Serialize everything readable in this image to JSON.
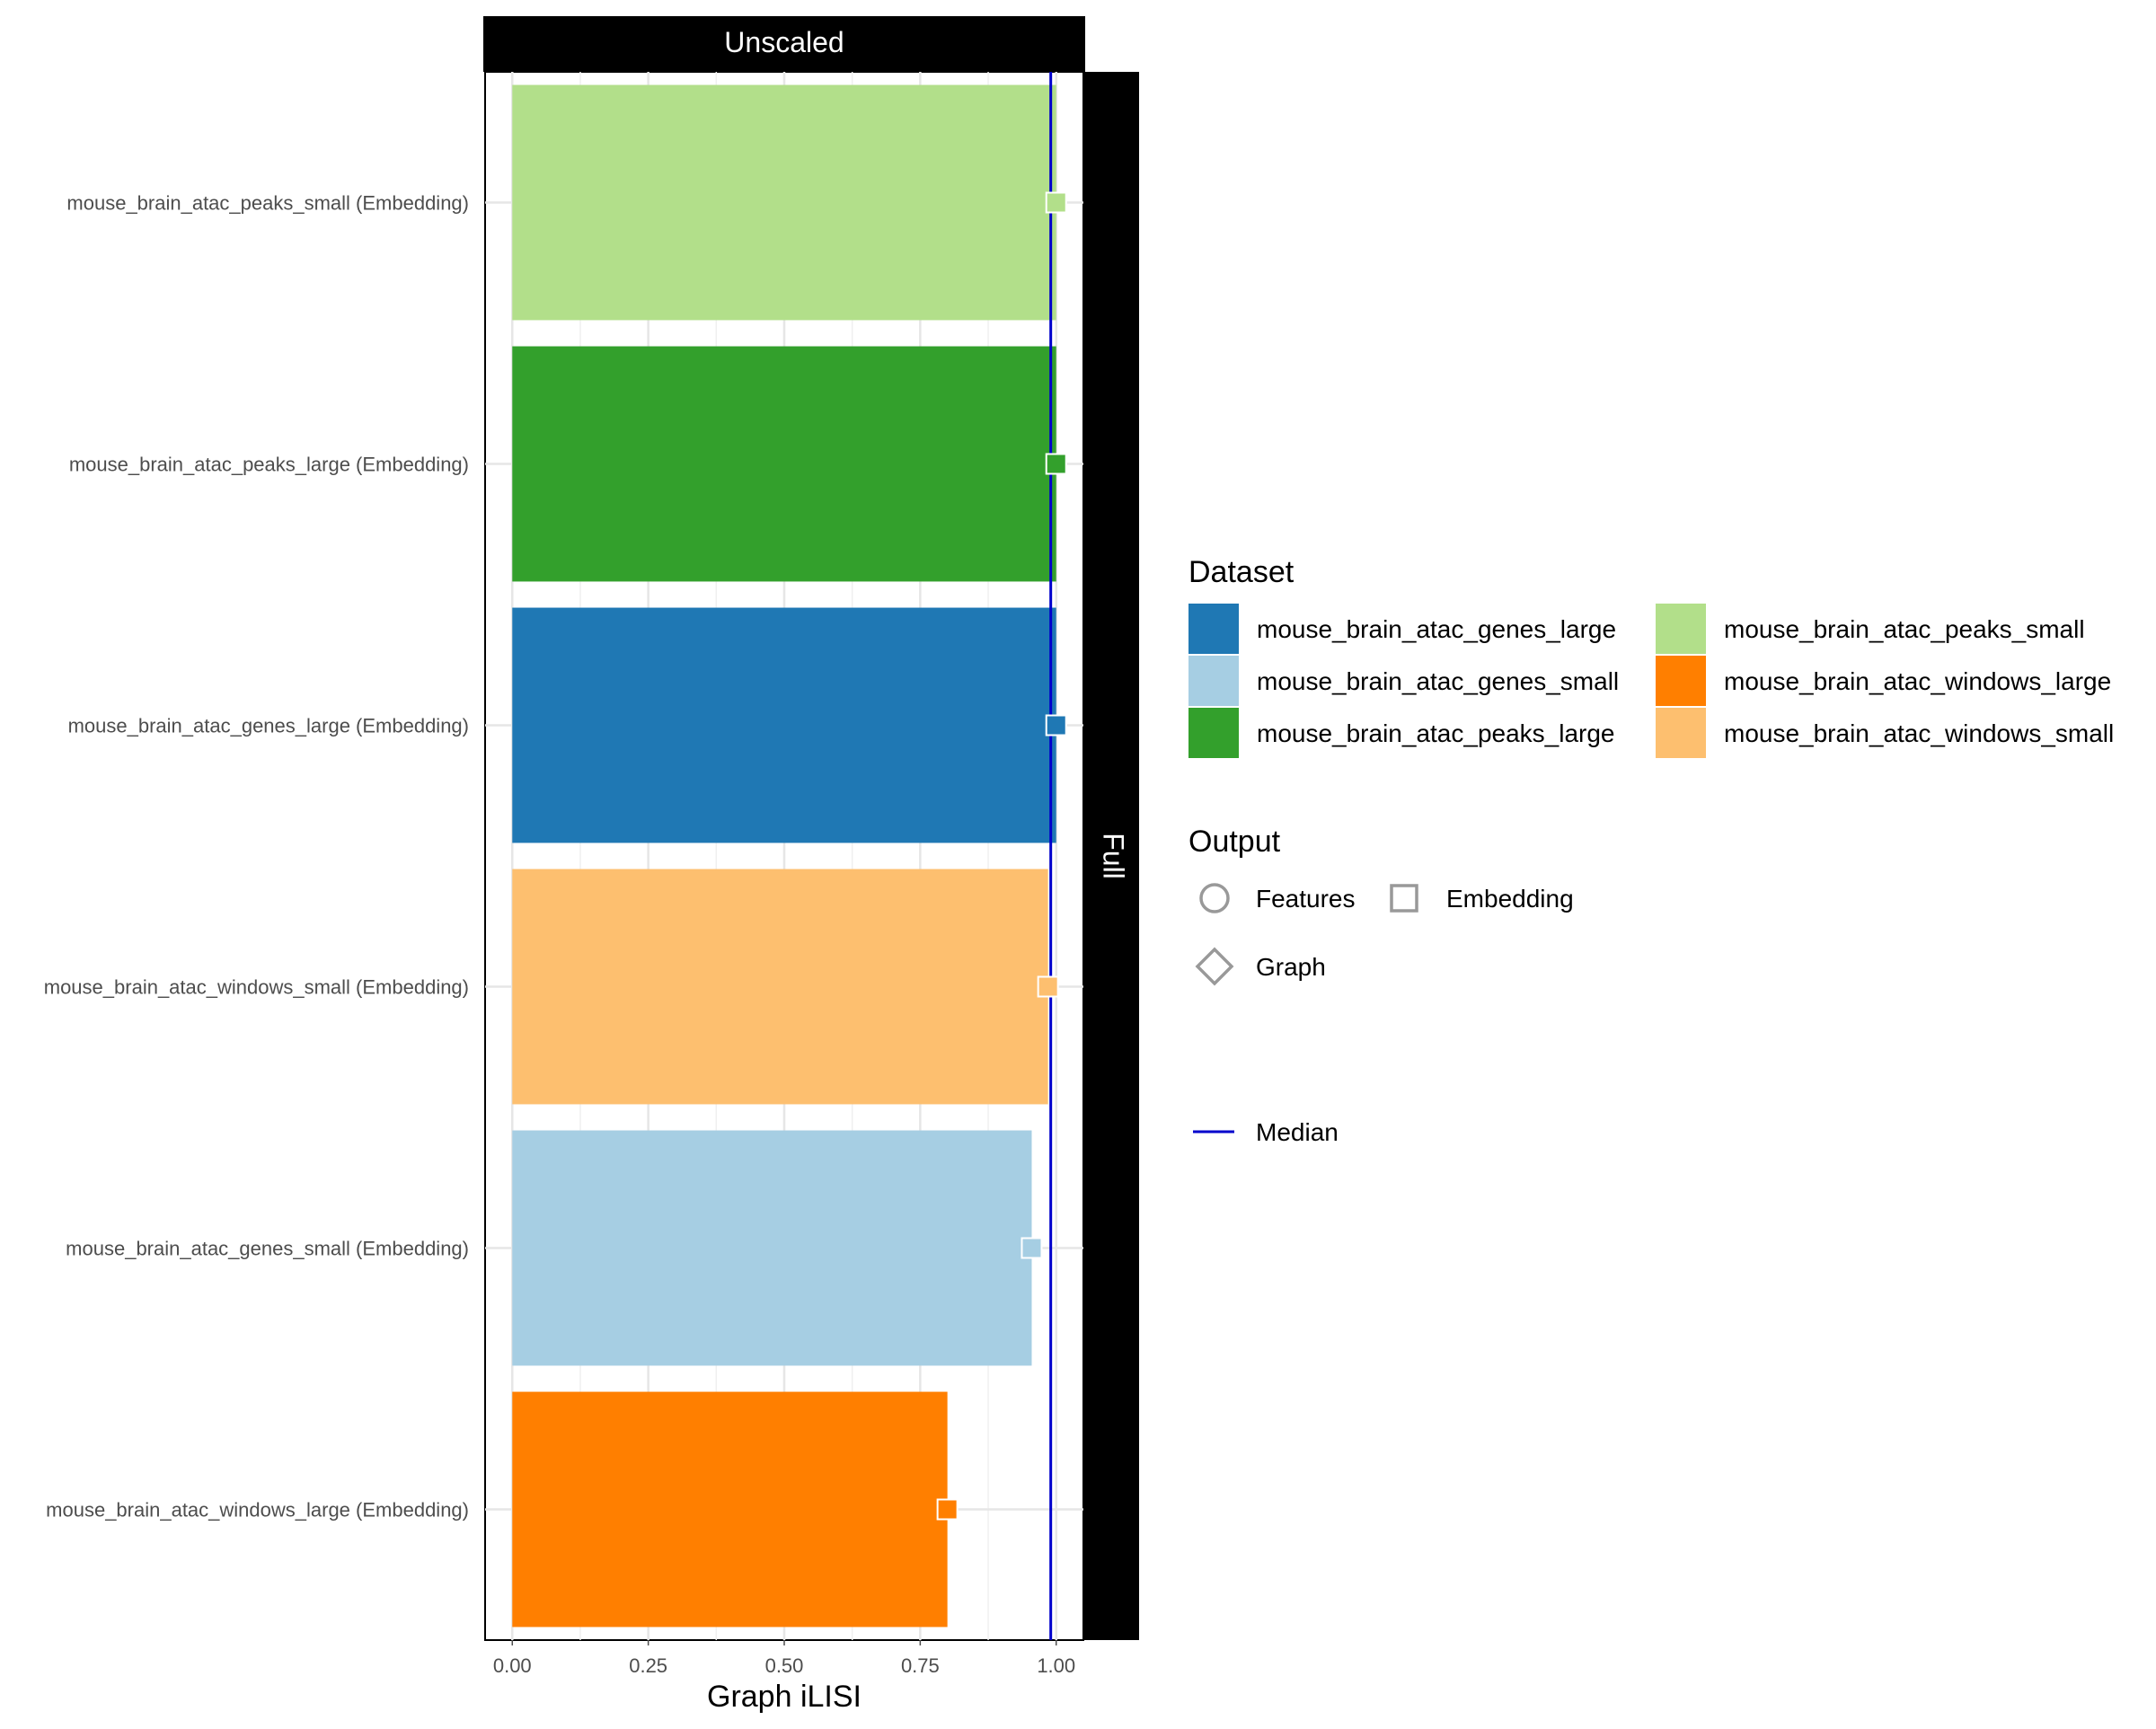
{
  "chart_data": {
    "type": "bar",
    "orientation": "horizontal",
    "facet_column_label": "Unscaled",
    "facet_row_label": "Full",
    "categories": [
      "mouse_brain_atac_peaks_small (Embedding)",
      "mouse_brain_atac_peaks_large (Embedding)",
      "mouse_brain_atac_genes_large (Embedding)",
      "mouse_brain_atac_windows_small (Embedding)",
      "mouse_brain_atac_genes_small (Embedding)",
      "mouse_brain_atac_windows_large (Embedding)"
    ],
    "values": [
      1.0,
      1.0,
      1.0,
      0.985,
      0.955,
      0.8
    ],
    "datasets": [
      "mouse_brain_atac_peaks_small",
      "mouse_brain_atac_peaks_large",
      "mouse_brain_atac_genes_large",
      "mouse_brain_atac_windows_small",
      "mouse_brain_atac_genes_small",
      "mouse_brain_atac_windows_large"
    ],
    "outputs": [
      "Embedding",
      "Embedding",
      "Embedding",
      "Embedding",
      "Embedding",
      "Embedding"
    ],
    "median": 0.99,
    "xlabel": "Graph iLISI",
    "ylabel": "",
    "xlim": [
      -0.05,
      1.05
    ],
    "xticks": [
      0.0,
      0.25,
      0.5,
      0.75,
      1.0
    ],
    "xtick_labels": [
      "0.00",
      "0.25",
      "0.50",
      "0.75",
      "1.00"
    ],
    "grid": true,
    "legend": {
      "placement": "right",
      "dataset_title": "Dataset",
      "dataset_entries": [
        {
          "label": "mouse_brain_atac_genes_large",
          "color": "#1f78b4"
        },
        {
          "label": "mouse_brain_atac_genes_small",
          "color": "#a6cee3"
        },
        {
          "label": "mouse_brain_atac_peaks_large",
          "color": "#33a02c"
        },
        {
          "label": "mouse_brain_atac_peaks_small",
          "color": "#b2df8a"
        },
        {
          "label": "mouse_brain_atac_windows_large",
          "color": "#ff7f00"
        },
        {
          "label": "mouse_brain_atac_windows_small",
          "color": "#fdbf6f"
        }
      ],
      "output_title": "Output",
      "output_entries": [
        {
          "label": "Features",
          "shape": "circle"
        },
        {
          "label": "Embedding",
          "shape": "square"
        },
        {
          "label": "Graph",
          "shape": "diamond"
        }
      ],
      "median_label": "Median",
      "median_color": "#0000cc"
    }
  }
}
